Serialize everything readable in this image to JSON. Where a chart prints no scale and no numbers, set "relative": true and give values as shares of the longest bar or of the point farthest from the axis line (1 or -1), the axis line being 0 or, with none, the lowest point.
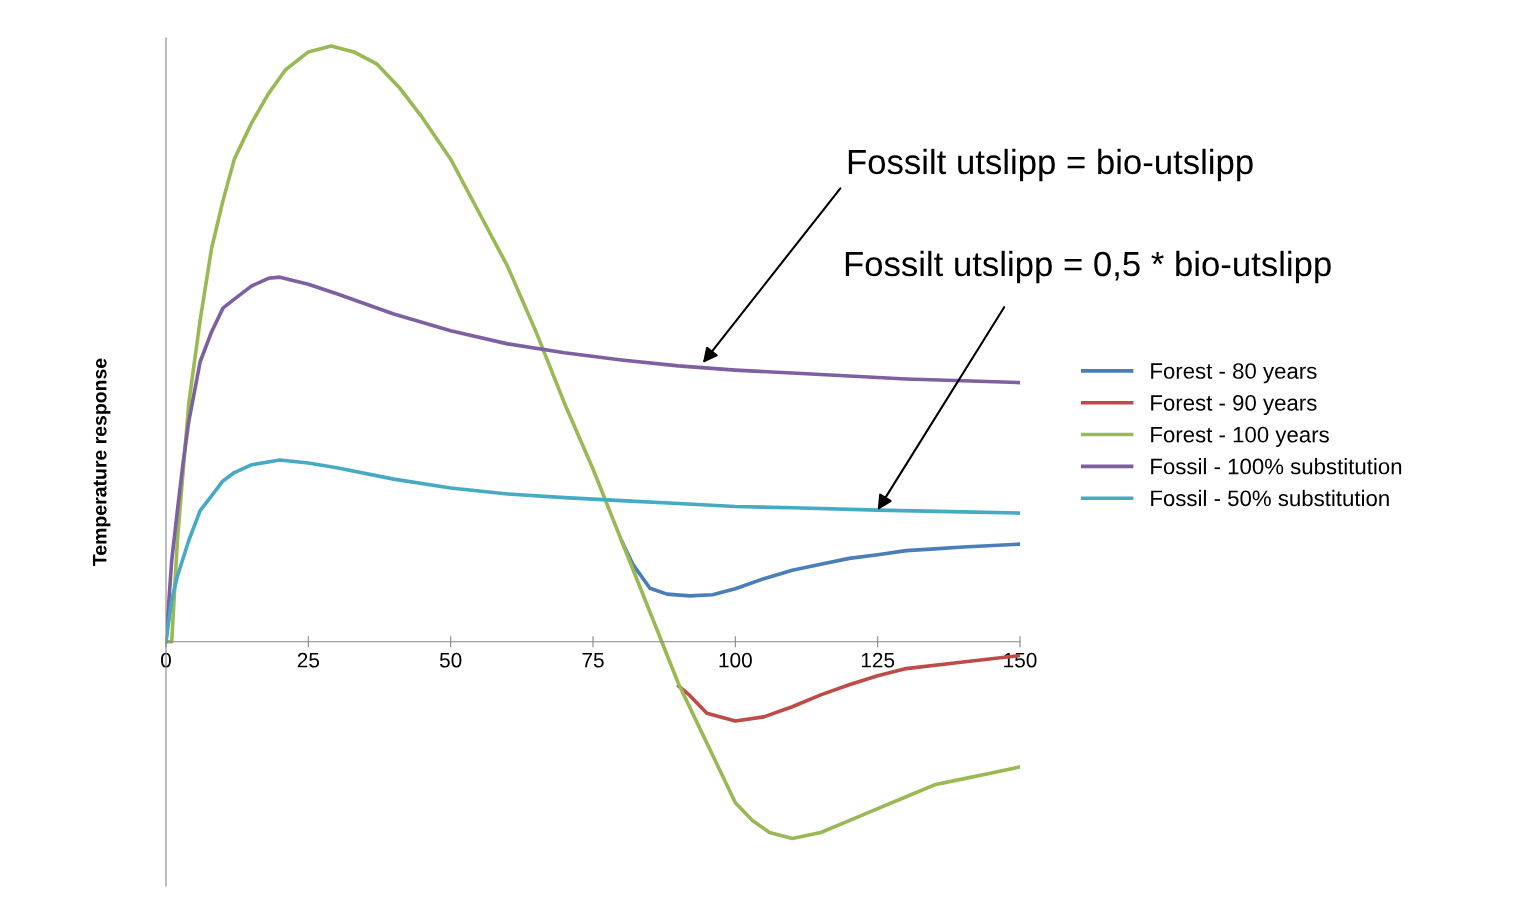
{
  "chart_data": {
    "type": "line",
    "relative": true,
    "ylabel": "Temperature response",
    "xlim": [
      0,
      150
    ],
    "xticks": [
      0,
      25,
      50,
      75,
      100,
      125,
      150
    ],
    "legend": "right",
    "grid": false,
    "marker": "none",
    "line_style": "solid",
    "series": [
      {
        "name": "Forest - 80 years",
        "color": "#4a7ebb",
        "x": [
          80,
          82,
          85,
          88,
          92,
          96,
          100,
          105,
          110,
          115,
          120,
          125,
          130,
          135,
          140,
          150
        ],
        "values": [
          0.17,
          0.13,
          0.09,
          0.08,
          0.077,
          0.079,
          0.089,
          0.106,
          0.12,
          0.13,
          0.14,
          0.146,
          0.153,
          0.156,
          0.159,
          0.164
        ]
      },
      {
        "name": "Forest - 90 years",
        "color": "#be4b48",
        "x": [
          90,
          92,
          95,
          100,
          105,
          110,
          115,
          120,
          125,
          130,
          140,
          150
        ],
        "values": [
          -0.074,
          -0.09,
          -0.12,
          -0.133,
          -0.126,
          -0.109,
          -0.089,
          -0.072,
          -0.057,
          -0.045,
          -0.034,
          -0.023
        ]
      },
      {
        "name": "Forest - 100 years",
        "color": "#98b954",
        "x": [
          0,
          1,
          2,
          4,
          6,
          8,
          10,
          12,
          15,
          18,
          21,
          25,
          29,
          33,
          37,
          41,
          45,
          50,
          55,
          60,
          65,
          70,
          75,
          80,
          85,
          90,
          95,
          100,
          103,
          106,
          110,
          115,
          120,
          125,
          130,
          135,
          140,
          145,
          150
        ],
        "values": [
          0,
          0,
          0.17,
          0.4,
          0.54,
          0.66,
          0.74,
          0.81,
          0.87,
          0.92,
          0.96,
          0.99,
          1.0,
          0.99,
          0.97,
          0.93,
          0.88,
          0.81,
          0.72,
          0.63,
          0.52,
          0.4,
          0.29,
          0.17,
          0.05,
          -0.07,
          -0.17,
          -0.27,
          -0.3,
          -0.32,
          -0.33,
          -0.32,
          -0.3,
          -0.28,
          -0.26,
          -0.24,
          -0.23,
          -0.22,
          -0.21
        ]
      },
      {
        "name": "Fossil - 100% substitution",
        "color": "#7d60a0",
        "x": [
          0,
          1,
          2,
          3,
          4,
          6,
          8,
          10,
          12,
          15,
          18,
          20,
          25,
          30,
          40,
          50,
          60,
          70,
          80,
          90,
          100,
          110,
          120,
          130,
          140,
          150
        ],
        "values": [
          0,
          0.136,
          0.22,
          0.3,
          0.37,
          0.47,
          0.52,
          0.56,
          0.575,
          0.597,
          0.61,
          0.612,
          0.6,
          0.584,
          0.55,
          0.522,
          0.5,
          0.485,
          0.473,
          0.463,
          0.456,
          0.451,
          0.446,
          0.441,
          0.438,
          0.435
        ]
      },
      {
        "name": "Fossil - 50% substitution",
        "color": "#46aac5",
        "x": [
          0,
          1,
          2,
          4,
          6,
          8,
          10,
          12,
          15,
          20,
          25,
          30,
          40,
          50,
          60,
          70,
          80,
          90,
          100,
          110,
          125,
          140,
          150
        ],
        "values": [
          0,
          0.07,
          0.11,
          0.17,
          0.22,
          0.245,
          0.27,
          0.284,
          0.297,
          0.305,
          0.3,
          0.292,
          0.273,
          0.258,
          0.248,
          0.242,
          0.237,
          0.232,
          0.227,
          0.225,
          0.221,
          0.218,
          0.216
        ]
      }
    ],
    "annotations": [
      {
        "text": "Fossilt utslipp = bio-utslipp",
        "x": 94.3,
        "y": 0.468
      },
      {
        "text": "Fossilt utslipp = 0,5 * bio-utslipp",
        "x": 125,
        "y": 0.221
      }
    ]
  }
}
